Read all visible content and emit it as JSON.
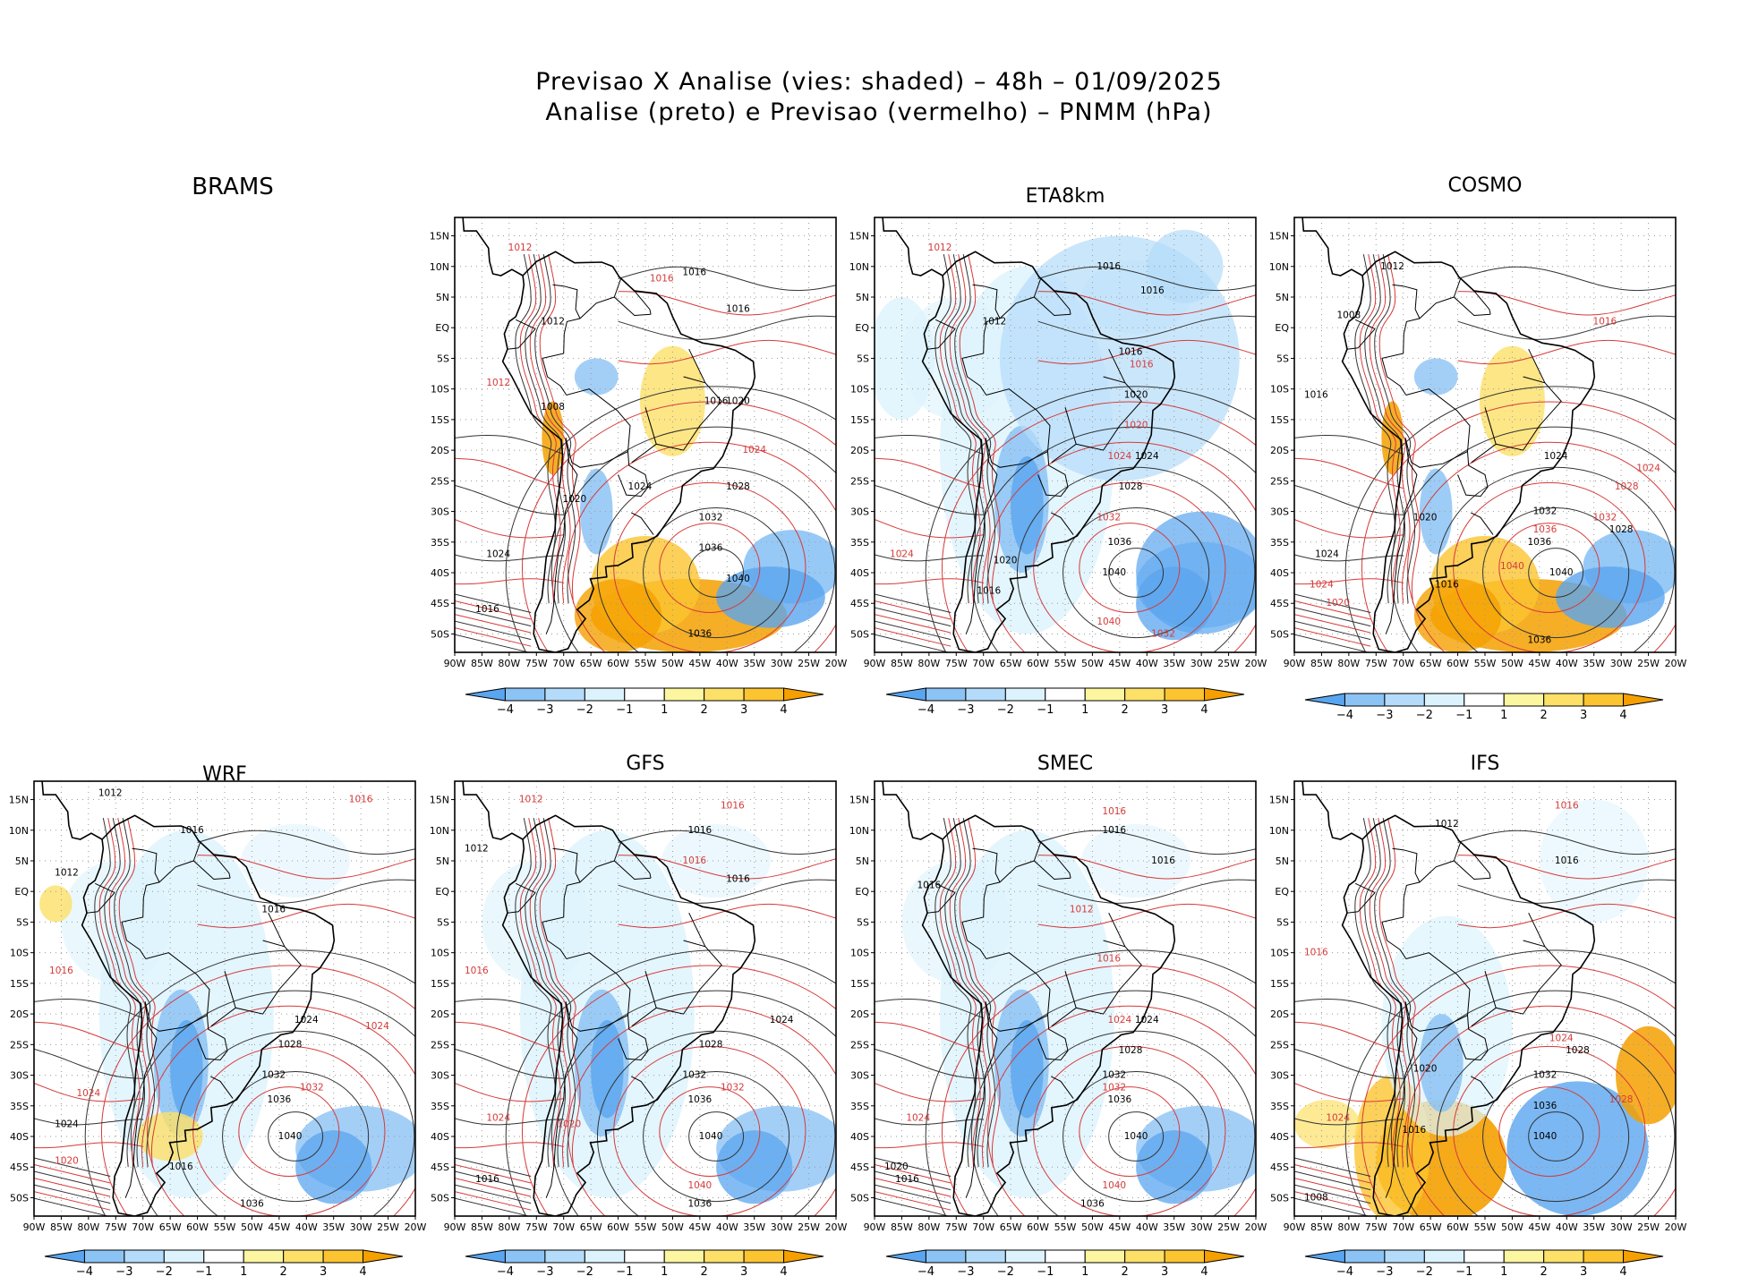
{
  "figure": {
    "title_line1": "Previsao X Analise (vies: shaded) – 48h – 01/09/2025",
    "title_line2": "Analise (preto) e Previsao (vermelho) – PNMM (hPa)"
  },
  "axes": {
    "lat_labels": [
      "15N",
      "10N",
      "5N",
      "EQ",
      "5S",
      "10S",
      "15S",
      "20S",
      "25S",
      "30S",
      "35S",
      "40S",
      "45S",
      "50S"
    ],
    "lon_labels": [
      "90W",
      "85W",
      "80W",
      "75W",
      "70W",
      "65W",
      "60W",
      "55W",
      "50W",
      "45W",
      "40W",
      "35W",
      "30W",
      "25W",
      "20W"
    ]
  },
  "colorbar": {
    "labels": [
      "−4",
      "−3",
      "−2",
      "−1",
      "1",
      "2",
      "3",
      "4"
    ],
    "colors": [
      "#5aa5f0",
      "#8cc3f5",
      "#b4dcfa",
      "#dcf3fd",
      "#ffffff",
      "#fdf6a0",
      "#fde068",
      "#fbc430",
      "#f5a000"
    ]
  },
  "panels": [
    {
      "name": "BRAMS",
      "has_map": false
    },
    {
      "name": "",
      "has_map": true,
      "bias": "warm",
      "labels": [
        {
          "t": "1012",
          "c": "red",
          "lon": -78,
          "lat": 13
        },
        {
          "t": "1016",
          "c": "black",
          "lon": -46,
          "lat": 9
        },
        {
          "t": "1016",
          "c": "red",
          "lon": -52,
          "lat": 8
        },
        {
          "t": "1012",
          "c": "black",
          "lon": -72,
          "lat": 1
        },
        {
          "t": "1016",
          "c": "black",
          "lon": -38,
          "lat": 3
        },
        {
          "t": "1012",
          "c": "red",
          "lon": -82,
          "lat": -9
        },
        {
          "t": "1016",
          "c": "black",
          "lon": -42,
          "lat": -12
        },
        {
          "t": "1020",
          "c": "black",
          "lon": -38,
          "lat": -12
        },
        {
          "t": "1024",
          "c": "red",
          "lon": -35,
          "lat": -20
        },
        {
          "t": "1028",
          "c": "black",
          "lon": -38,
          "lat": -26
        },
        {
          "t": "1032",
          "c": "black",
          "lon": -43,
          "lat": -31
        },
        {
          "t": "1036",
          "c": "black",
          "lon": -43,
          "lat": -36
        },
        {
          "t": "1040",
          "c": "black",
          "lon": -38,
          "lat": -41
        },
        {
          "t": "1036",
          "c": "black",
          "lon": -45,
          "lat": -50
        },
        {
          "t": "1024",
          "c": "black",
          "lon": -82,
          "lat": -37
        },
        {
          "t": "1016",
          "c": "black",
          "lon": -84,
          "lat": -46
        },
        {
          "t": "1020",
          "c": "black",
          "lon": -68,
          "lat": -28
        },
        {
          "t": "1008",
          "c": "black",
          "lon": -72,
          "lat": -13
        },
        {
          "t": "1024",
          "c": "black",
          "lon": -56,
          "lat": -26
        }
      ]
    },
    {
      "name": "ETA8km",
      "has_map": true,
      "bias": "cool",
      "labels": [
        {
          "t": "1012",
          "c": "red",
          "lon": -78,
          "lat": 13
        },
        {
          "t": "1016",
          "c": "black",
          "lon": -47,
          "lat": 10
        },
        {
          "t": "1016",
          "c": "black",
          "lon": -39,
          "lat": 6
        },
        {
          "t": "1012",
          "c": "black",
          "lon": -68,
          "lat": 1
        },
        {
          "t": "1016",
          "c": "black",
          "lon": -43,
          "lat": -4
        },
        {
          "t": "1016",
          "c": "red",
          "lon": -41,
          "lat": -6
        },
        {
          "t": "1020",
          "c": "black",
          "lon": -42,
          "lat": -11
        },
        {
          "t": "1020",
          "c": "red",
          "lon": -42,
          "lat": -16
        },
        {
          "t": "1024",
          "c": "red",
          "lon": -45,
          "lat": -21
        },
        {
          "t": "1024",
          "c": "black",
          "lon": -40,
          "lat": -21
        },
        {
          "t": "1028",
          "c": "black",
          "lon": -43,
          "lat": -26
        },
        {
          "t": "1032",
          "c": "red",
          "lon": -47,
          "lat": -31
        },
        {
          "t": "1036",
          "c": "black",
          "lon": -45,
          "lat": -35
        },
        {
          "t": "1040",
          "c": "black",
          "lon": -46,
          "lat": -40
        },
        {
          "t": "1040",
          "c": "red",
          "lon": -47,
          "lat": -48
        },
        {
          "t": "1032",
          "c": "red",
          "lon": -37,
          "lat": -50
        },
        {
          "t": "1024",
          "c": "red",
          "lon": -85,
          "lat": -37
        },
        {
          "t": "1020",
          "c": "black",
          "lon": -66,
          "lat": -38
        },
        {
          "t": "1016",
          "c": "black",
          "lon": -69,
          "lat": -43
        }
      ]
    },
    {
      "name": "COSMO",
      "has_map": true,
      "bias": "warm",
      "labels": [
        {
          "t": "1012",
          "c": "black",
          "lon": -72,
          "lat": 10
        },
        {
          "t": "1008",
          "c": "black",
          "lon": -80,
          "lat": 2
        },
        {
          "t": "1016",
          "c": "black",
          "lon": -86,
          "lat": -11
        },
        {
          "t": "1016",
          "c": "red",
          "lon": -33,
          "lat": 1
        },
        {
          "t": "1024",
          "c": "black",
          "lon": -42,
          "lat": -21
        },
        {
          "t": "1024",
          "c": "red",
          "lon": -25,
          "lat": -23
        },
        {
          "t": "1028",
          "c": "red",
          "lon": -29,
          "lat": -26
        },
        {
          "t": "1032",
          "c": "black",
          "lon": -44,
          "lat": -30
        },
        {
          "t": "1036",
          "c": "red",
          "lon": -44,
          "lat": -33
        },
        {
          "t": "1032",
          "c": "red",
          "lon": -33,
          "lat": -31
        },
        {
          "t": "1028",
          "c": "black",
          "lon": -30,
          "lat": -33
        },
        {
          "t": "1036",
          "c": "black",
          "lon": -45,
          "lat": -35
        },
        {
          "t": "1040",
          "c": "red",
          "lon": -50,
          "lat": -39
        },
        {
          "t": "1040",
          "c": "black",
          "lon": -41,
          "lat": -40
        },
        {
          "t": "1036",
          "c": "black",
          "lon": -45,
          "lat": -51
        },
        {
          "t": "1024",
          "c": "black",
          "lon": -84,
          "lat": -37
        },
        {
          "t": "1024",
          "c": "red",
          "lon": -85,
          "lat": -42
        },
        {
          "t": "1020",
          "c": "red",
          "lon": -82,
          "lat": -45
        },
        {
          "t": "1016",
          "c": "black",
          "lon": -62,
          "lat": -42
        },
        {
          "t": "1020",
          "c": "black",
          "lon": -66,
          "lat": -31
        }
      ]
    },
    {
      "name": "WRF",
      "has_map": true,
      "bias": "cool",
      "labels": [
        {
          "t": "1012",
          "c": "black",
          "lon": -76,
          "lat": 16
        },
        {
          "t": "1016",
          "c": "black",
          "lon": -61,
          "lat": 10
        },
        {
          "t": "1016",
          "c": "red",
          "lon": -30,
          "lat": 15
        },
        {
          "t": "1012",
          "c": "black",
          "lon": -84,
          "lat": 3
        },
        {
          "t": "1016",
          "c": "black",
          "lon": -46,
          "lat": -3
        },
        {
          "t": "1016",
          "c": "red",
          "lon": -85,
          "lat": -13
        },
        {
          "t": "1024",
          "c": "black",
          "lon": -40,
          "lat": -21
        },
        {
          "t": "1024",
          "c": "red",
          "lon": -27,
          "lat": -22
        },
        {
          "t": "1028",
          "c": "black",
          "lon": -43,
          "lat": -25
        },
        {
          "t": "1032",
          "c": "black",
          "lon": -46,
          "lat": -30
        },
        {
          "t": "1032",
          "c": "red",
          "lon": -39,
          "lat": -32
        },
        {
          "t": "1036",
          "c": "black",
          "lon": -45,
          "lat": -34
        },
        {
          "t": "1040",
          "c": "black",
          "lon": -43,
          "lat": -40
        },
        {
          "t": "1036",
          "c": "black",
          "lon": -50,
          "lat": -51
        },
        {
          "t": "1024",
          "c": "red",
          "lon": -80,
          "lat": -33
        },
        {
          "t": "1024",
          "c": "black",
          "lon": -84,
          "lat": -38
        },
        {
          "t": "1020",
          "c": "red",
          "lon": -84,
          "lat": -44
        },
        {
          "t": "1016",
          "c": "black",
          "lon": -63,
          "lat": -45
        }
      ]
    },
    {
      "name": "GFS",
      "has_map": true,
      "bias": "cool",
      "labels": [
        {
          "t": "1012",
          "c": "red",
          "lon": -76,
          "lat": 15
        },
        {
          "t": "1016",
          "c": "black",
          "lon": -45,
          "lat": 10
        },
        {
          "t": "1016",
          "c": "red",
          "lon": -39,
          "lat": 14
        },
        {
          "t": "1016",
          "c": "black",
          "lon": -38,
          "lat": 2
        },
        {
          "t": "1016",
          "c": "red",
          "lon": -46,
          "lat": 5
        },
        {
          "t": "1012",
          "c": "black",
          "lon": -86,
          "lat": 7
        },
        {
          "t": "1016",
          "c": "red",
          "lon": -86,
          "lat": -13
        },
        {
          "t": "1024",
          "c": "black",
          "lon": -30,
          "lat": -21
        },
        {
          "t": "1028",
          "c": "black",
          "lon": -43,
          "lat": -25
        },
        {
          "t": "1032",
          "c": "black",
          "lon": -46,
          "lat": -30
        },
        {
          "t": "1032",
          "c": "red",
          "lon": -39,
          "lat": -32
        },
        {
          "t": "1036",
          "c": "black",
          "lon": -45,
          "lat": -34
        },
        {
          "t": "1040",
          "c": "black",
          "lon": -43,
          "lat": -40
        },
        {
          "t": "1040",
          "c": "red",
          "lon": -45,
          "lat": -48
        },
        {
          "t": "1036",
          "c": "black",
          "lon": -45,
          "lat": -51
        },
        {
          "t": "1024",
          "c": "red",
          "lon": -82,
          "lat": -37
        },
        {
          "t": "1016",
          "c": "black",
          "lon": -84,
          "lat": -47
        },
        {
          "t": "1020",
          "c": "red",
          "lon": -69,
          "lat": -38
        }
      ]
    },
    {
      "name": "SMEC",
      "has_map": true,
      "bias": "cool",
      "labels": [
        {
          "t": "1016",
          "c": "red",
          "lon": -46,
          "lat": 13
        },
        {
          "t": "1016",
          "c": "black",
          "lon": -46,
          "lat": 10
        },
        {
          "t": "1016",
          "c": "black",
          "lon": -37,
          "lat": 5
        },
        {
          "t": "1016",
          "c": "black",
          "lon": -80,
          "lat": 1
        },
        {
          "t": "1012",
          "c": "red",
          "lon": -52,
          "lat": -3
        },
        {
          "t": "1016",
          "c": "red",
          "lon": -47,
          "lat": -11
        },
        {
          "t": "1024",
          "c": "red",
          "lon": -45,
          "lat": -21
        },
        {
          "t": "1024",
          "c": "black",
          "lon": -40,
          "lat": -21
        },
        {
          "t": "1028",
          "c": "black",
          "lon": -43,
          "lat": -26
        },
        {
          "t": "1032",
          "c": "black",
          "lon": -46,
          "lat": -30
        },
        {
          "t": "1032",
          "c": "red",
          "lon": -46,
          "lat": -32
        },
        {
          "t": "1036",
          "c": "black",
          "lon": -45,
          "lat": -34
        },
        {
          "t": "1040",
          "c": "black",
          "lon": -42,
          "lat": -40
        },
        {
          "t": "1040",
          "c": "red",
          "lon": -46,
          "lat": -48
        },
        {
          "t": "1036",
          "c": "black",
          "lon": -50,
          "lat": -51
        },
        {
          "t": "1024",
          "c": "red",
          "lon": -82,
          "lat": -37
        },
        {
          "t": "1020",
          "c": "black",
          "lon": -86,
          "lat": -45
        },
        {
          "t": "1016",
          "c": "black",
          "lon": -84,
          "lat": -47
        }
      ]
    },
    {
      "name": "IFS",
      "has_map": true,
      "bias": "ifs",
      "labels": [
        {
          "t": "1012",
          "c": "black",
          "lon": -62,
          "lat": 11
        },
        {
          "t": "1016",
          "c": "red",
          "lon": -40,
          "lat": 14
        },
        {
          "t": "1016",
          "c": "black",
          "lon": -40,
          "lat": 5
        },
        {
          "t": "1016",
          "c": "red",
          "lon": -86,
          "lat": -10
        },
        {
          "t": "1024",
          "c": "red",
          "lon": -41,
          "lat": -24
        },
        {
          "t": "1028",
          "c": "black",
          "lon": -38,
          "lat": -26
        },
        {
          "t": "1032",
          "c": "black",
          "lon": -44,
          "lat": -30
        },
        {
          "t": "1028",
          "c": "red",
          "lon": -30,
          "lat": -34
        },
        {
          "t": "1036",
          "c": "black",
          "lon": -44,
          "lat": -35
        },
        {
          "t": "1040",
          "c": "black",
          "lon": -44,
          "lat": -40
        },
        {
          "t": "1024",
          "c": "red",
          "lon": -82,
          "lat": -37
        },
        {
          "t": "1016",
          "c": "black",
          "lon": -68,
          "lat": -39
        },
        {
          "t": "1008",
          "c": "black",
          "lon": -86,
          "lat": -50
        },
        {
          "t": "1020",
          "c": "black",
          "lon": -66,
          "lat": -29
        }
      ]
    }
  ]
}
